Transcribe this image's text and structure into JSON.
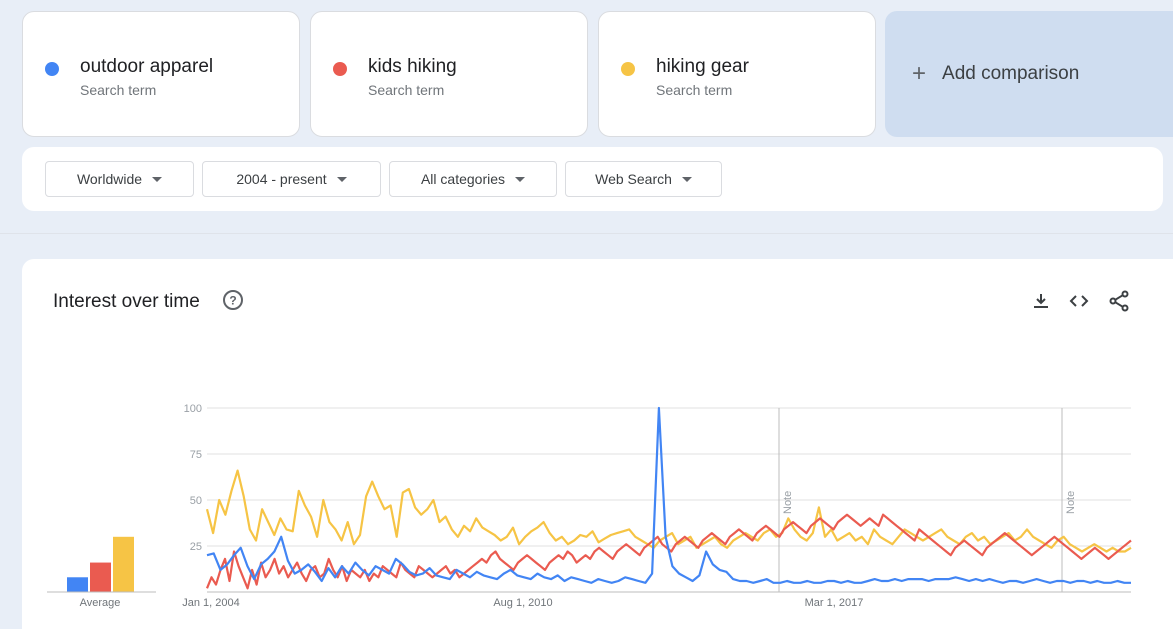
{
  "terms": [
    {
      "name": "outdoor apparel",
      "sub": "Search term",
      "color": "#4285f4"
    },
    {
      "name": "kids hiking",
      "sub": "Search term",
      "color": "#ea5b50"
    },
    {
      "name": "hiking gear",
      "sub": "Search term",
      "color": "#f6c445"
    }
  ],
  "add_comparison": {
    "icon": "plus-icon",
    "label": "Add comparison"
  },
  "filters": {
    "region": "Worldwide",
    "time": "2004 - present",
    "category": "All categories",
    "property": "Web Search"
  },
  "panel": {
    "title": "Interest over time",
    "icons": [
      "help-icon",
      "download-icon",
      "embed-icon",
      "share-icon"
    ]
  },
  "chart_data": {
    "type": "line",
    "y_ticks": [
      "100",
      "75",
      "50",
      "25"
    ],
    "ylim": [
      0,
      100
    ],
    "x_ticks": [
      "Jan 1, 2004",
      "Aug 1, 2010",
      "Mar 1, 2017"
    ],
    "notes": [
      "Note",
      "Note"
    ],
    "grid": true,
    "average": {
      "label": "Average",
      "values": [
        8,
        16,
        30
      ]
    },
    "series": [
      {
        "name": "outdoor apparel",
        "color": "#4285f4",
        "values": [
          20,
          21,
          12,
          15,
          20,
          24,
          14,
          7,
          15,
          18,
          22,
          30,
          17,
          10,
          12,
          15,
          11,
          6,
          13,
          8,
          14,
          10,
          16,
          12,
          9,
          14,
          12,
          10,
          18,
          15,
          11,
          9,
          10,
          13,
          9,
          8,
          7,
          12,
          10,
          8,
          11,
          9,
          8,
          7,
          10,
          12,
          9,
          8,
          7,
          10,
          8,
          7,
          9,
          6,
          8,
          7,
          6,
          5,
          7,
          6,
          5,
          6,
          8,
          7,
          6,
          5,
          10,
          100,
          30,
          14,
          10,
          8,
          6,
          9,
          22,
          15,
          12,
          11,
          7,
          6,
          6,
          5,
          6,
          7,
          5,
          5,
          6,
          5,
          5,
          6,
          5,
          5,
          6,
          6,
          5,
          6,
          5,
          5,
          6,
          7,
          6,
          6,
          7,
          6,
          7,
          7,
          7,
          6,
          7,
          7,
          7,
          8,
          7,
          6,
          7,
          6,
          7,
          6,
          5,
          6,
          6,
          5,
          6,
          7,
          6,
          5,
          6,
          6,
          5,
          6,
          6,
          5,
          6,
          5,
          5,
          6,
          5,
          5
        ]
      },
      {
        "name": "kids hiking",
        "color": "#ea5b50",
        "values": [
          2,
          8,
          4,
          12,
          18,
          6,
          22,
          14,
          8,
          2,
          12,
          4,
          16,
          8,
          12,
          18,
          10,
          14,
          8,
          12,
          16,
          10,
          6,
          12,
          14,
          8,
          10,
          18,
          12,
          8,
          14,
          6,
          12,
          10,
          8,
          12,
          6,
          10,
          8,
          14,
          12,
          10,
          8,
          16,
          12,
          10,
          8,
          14,
          12,
          10,
          8,
          10,
          12,
          14,
          10,
          12,
          8,
          10,
          12,
          14,
          16,
          18,
          16,
          20,
          22,
          18,
          16,
          14,
          12,
          16,
          18,
          20,
          18,
          16,
          14,
          12,
          16,
          18,
          20,
          18,
          22,
          20,
          16,
          18,
          20,
          18,
          22,
          24,
          22,
          20,
          18,
          22,
          24,
          26,
          24,
          22,
          20,
          24,
          26,
          28,
          30,
          26,
          24,
          22,
          26,
          28,
          30,
          28,
          26,
          24,
          28,
          30,
          32,
          30,
          28,
          26,
          30,
          32,
          34,
          32,
          30,
          28,
          32,
          34,
          36,
          34,
          32,
          30,
          34,
          36,
          38,
          36,
          34,
          32,
          36,
          38,
          40,
          38,
          36,
          34,
          38,
          40,
          42,
          40,
          38,
          36,
          38,
          40,
          38,
          36,
          42,
          40,
          38,
          36,
          34,
          32,
          30,
          28,
          34,
          32,
          30,
          28,
          26,
          24,
          22,
          20,
          24,
          26,
          28,
          26,
          24,
          22,
          20,
          24,
          26,
          28,
          30,
          32,
          30,
          28,
          26,
          24,
          22,
          20,
          22,
          24,
          26,
          28,
          30,
          28,
          26,
          24,
          22,
          20,
          18,
          20,
          22,
          24,
          22,
          20,
          18,
          20,
          22,
          24,
          26,
          28
        ]
      },
      {
        "name": "hiking gear",
        "color": "#f6c445",
        "values": [
          45,
          32,
          50,
          42,
          55,
          66,
          52,
          34,
          28,
          45,
          38,
          31,
          40,
          34,
          33,
          55,
          47,
          41,
          30,
          50,
          38,
          34,
          28,
          38,
          26,
          31,
          52,
          60,
          52,
          45,
          47,
          30,
          54,
          56,
          46,
          42,
          45,
          50,
          38,
          41,
          34,
          30,
          36,
          33,
          40,
          35,
          33,
          31,
          28,
          30,
          35,
          26,
          30,
          33,
          35,
          38,
          32,
          28,
          30,
          26,
          28,
          31,
          30,
          33,
          27,
          29,
          31,
          32,
          33,
          34,
          30,
          28,
          26,
          24,
          28,
          30,
          32,
          26,
          28,
          30,
          24,
          26,
          28,
          30,
          26,
          24,
          28,
          30,
          32,
          30,
          28,
          32,
          34,
          30,
          32,
          40,
          34,
          30,
          28,
          32,
          46,
          30,
          34,
          28,
          30,
          32,
          28,
          30,
          26,
          34,
          30,
          28,
          26,
          30,
          34,
          32,
          30,
          28,
          30,
          32,
          34,
          30,
          28,
          26,
          30,
          32,
          28,
          30,
          26,
          28,
          30,
          32,
          28,
          30,
          34,
          30,
          28,
          26,
          24,
          28,
          30,
          26,
          24,
          22,
          24,
          26,
          24,
          22,
          24,
          22,
          22,
          24
        ]
      }
    ]
  }
}
